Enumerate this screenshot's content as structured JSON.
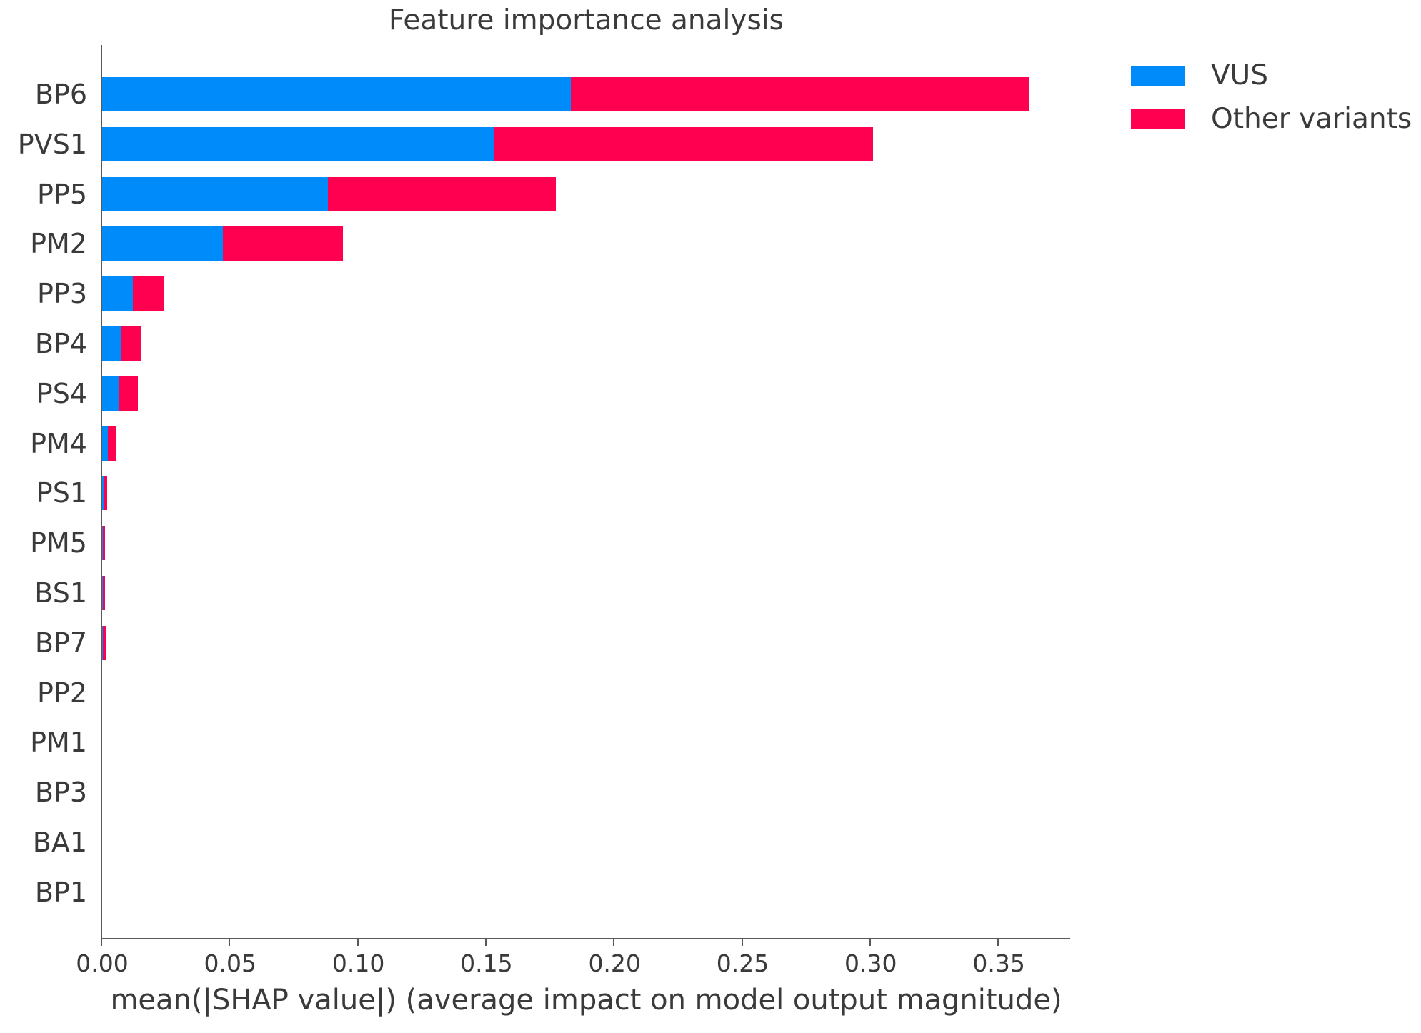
{
  "chart_data": {
    "type": "bar",
    "orientation": "horizontal",
    "stacked": true,
    "title": "Feature importance analysis",
    "xlabel": "mean(|SHAP value|) (average impact on model output magnitude)",
    "ylabel": "",
    "categories": [
      "BP6",
      "PVS1",
      "PP5",
      "PM2",
      "PP3",
      "BP4",
      "PS4",
      "PM4",
      "PS1",
      "PM5",
      "BS1",
      "BP7",
      "PP2",
      "PM1",
      "BP3",
      "BA1",
      "BP1"
    ],
    "series": [
      {
        "name": "VUS",
        "color": "#008bfb",
        "values": [
          0.183,
          0.153,
          0.088,
          0.047,
          0.012,
          0.0073,
          0.0064,
          0.0021,
          0.0005,
          0.0003,
          0.0003,
          0.0004,
          0,
          0,
          0,
          0,
          0
        ]
      },
      {
        "name": "Other variants",
        "color": "#ff0051",
        "values": [
          0.179,
          0.148,
          0.089,
          0.047,
          0.012,
          0.0077,
          0.0074,
          0.0033,
          0.0015,
          0.0008,
          0.0008,
          0.001,
          0,
          0,
          0,
          0,
          0
        ]
      }
    ],
    "totals": [
      0.362,
      0.301,
      0.177,
      0.094,
      0.024,
      0.015,
      0.014,
      0.005,
      0.002,
      0.001,
      0.001,
      0.001,
      0,
      0,
      0,
      0,
      0
    ],
    "xlim": [
      0,
      0.378
    ],
    "x_ticks": [
      {
        "value": 0.0,
        "label": "0.00"
      },
      {
        "value": 0.05,
        "label": "0.05"
      },
      {
        "value": 0.1,
        "label": "0.10"
      },
      {
        "value": 0.15,
        "label": "0.15"
      },
      {
        "value": 0.2,
        "label": "0.20"
      },
      {
        "value": 0.25,
        "label": "0.25"
      },
      {
        "value": 0.3,
        "label": "0.30"
      },
      {
        "value": 0.35,
        "label": "0.35"
      }
    ],
    "grid": "off",
    "legend_position": "upper-right"
  }
}
